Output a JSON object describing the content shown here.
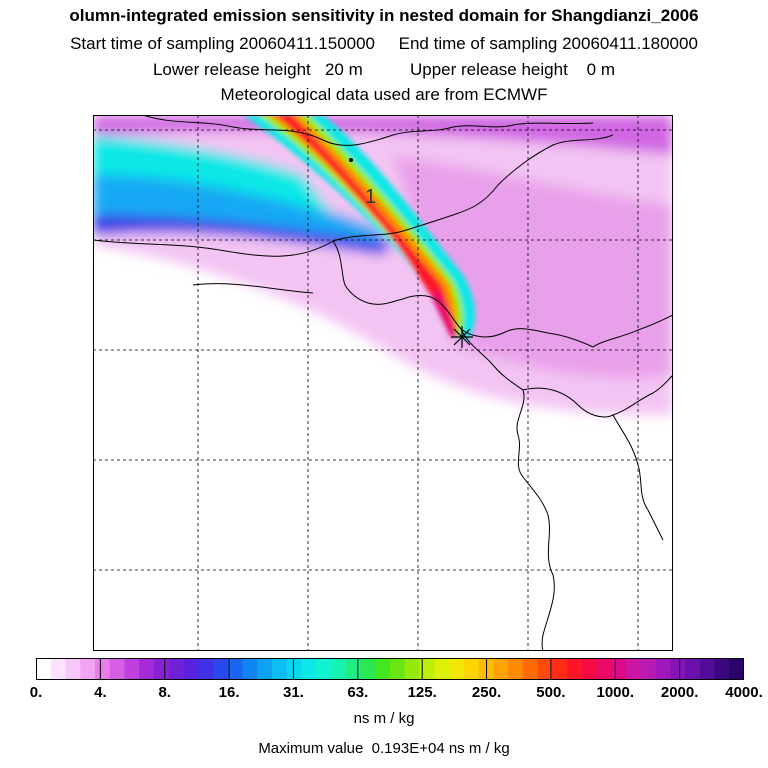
{
  "titles": {
    "line1": "olumn-integrated emission sensitivity in nested domain for Shangdianzi_2006",
    "line2": "Start time of sampling 20060411.150000     End time of sampling 20060411.180000",
    "line3": "Lower release height   20 m          Upper release height    0 m",
    "line4": "Meteorological data used are from ECMWF"
  },
  "map": {
    "contour_label": "1",
    "receptor_marker": "*"
  },
  "colorbar": {
    "ticks": [
      "0.",
      "4.",
      "8.",
      "16.",
      "31.",
      "63.",
      "125.",
      "250.",
      "500.",
      "1000.",
      "2000.",
      "4000."
    ],
    "colors": [
      "#ffffff",
      "#fde2fd",
      "#f8c6f8",
      "#f2a4f2",
      "#e77ee9",
      "#d45ee4",
      "#c03fde",
      "#a42ad8",
      "#8a22d4",
      "#7020d6",
      "#5a22de",
      "#4030e6",
      "#2848ee",
      "#1a66f2",
      "#1284f4",
      "#0ea2f4",
      "#0cbef2",
      "#0cd6ee",
      "#0ce8e6",
      "#10f2d2",
      "#18f2b0",
      "#20ee84",
      "#2ae852",
      "#44e622",
      "#6ce612",
      "#94ea0c",
      "#bcee08",
      "#dcf008",
      "#f2e806",
      "#ffd404",
      "#ffbc04",
      "#ffa404",
      "#ff8a04",
      "#ff6c06",
      "#ff4c0c",
      "#ff2c18",
      "#ff1428",
      "#f80a44",
      "#ea0a66",
      "#dc0a88",
      "#ca16a2",
      "#b81ab4",
      "#a018bc",
      "#8414b8",
      "#6a10ac",
      "#520c98",
      "#3c0880",
      "#2a0466"
    ],
    "unit": "ns m / kg",
    "max_value": "Maximum value  0.193E+04 ns m / kg"
  }
}
